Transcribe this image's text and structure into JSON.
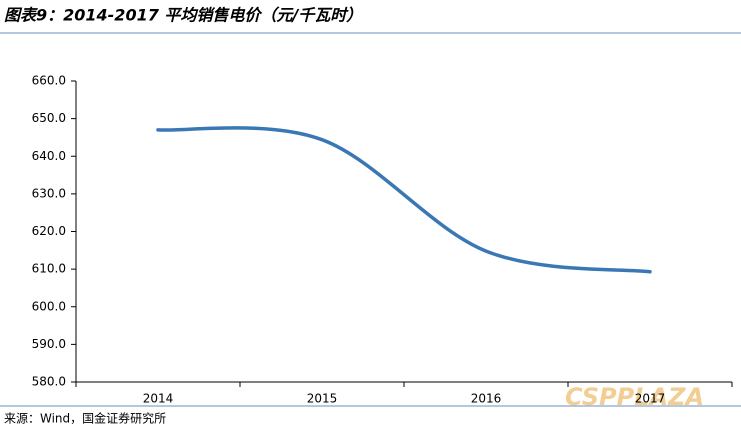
{
  "chart_data": {
    "type": "line",
    "title": "图表9：2014-2017 平均销售电价（元/千瓦时）",
    "categories": [
      "2014",
      "2015",
      "2016",
      "2017"
    ],
    "series": [
      {
        "name": "平均销售电价",
        "color": "#3a78b5",
        "values": [
          647,
          644.4,
          614.8,
          609.3
        ]
      }
    ],
    "ylim": [
      580,
      660
    ],
    "yticks": [
      {
        "value": 580,
        "label": "580.0"
      },
      {
        "value": 590,
        "label": "590.0"
      },
      {
        "value": 600,
        "label": "600.0"
      },
      {
        "value": 610,
        "label": "610.0"
      },
      {
        "value": 620,
        "label": "620.0"
      },
      {
        "value": 630,
        "label": "630.0"
      },
      {
        "value": 640,
        "label": "640.0"
      },
      {
        "value": 650,
        "label": "650.0"
      },
      {
        "value": 660,
        "label": "660.0"
      }
    ],
    "source": "来源：Wind，国金证券研究所",
    "watermark": "CSPPLAZA"
  }
}
